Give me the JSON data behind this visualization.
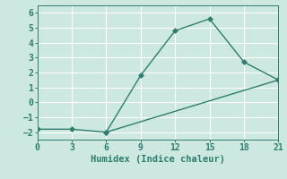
{
  "line1_x": [
    0,
    3,
    6,
    21
  ],
  "line1_y": [
    -1.8,
    -1.8,
    -2.0,
    1.5
  ],
  "line2_x": [
    6,
    9,
    12,
    15,
    18,
    21
  ],
  "line2_y": [
    -2.0,
    1.8,
    4.8,
    5.6,
    2.7,
    1.5
  ],
  "line_color": "#2e7d6e",
  "bg_color": "#cce8e0",
  "grid_color": "#ffffff",
  "xlabel": "Humidex (Indice chaleur)",
  "xlim": [
    0,
    21
  ],
  "ylim": [
    -2.5,
    6.5
  ],
  "xticks": [
    0,
    3,
    6,
    9,
    12,
    15,
    18,
    21
  ],
  "yticks": [
    -2,
    -1,
    0,
    1,
    2,
    3,
    4,
    5,
    6
  ],
  "xlabel_fontsize": 7.5,
  "tick_fontsize": 7.0,
  "linewidth": 1.0,
  "markersize": 3.0
}
